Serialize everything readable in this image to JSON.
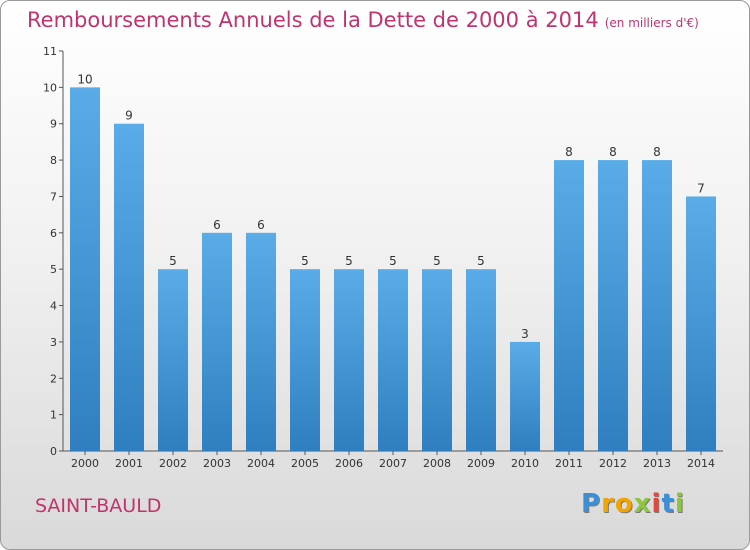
{
  "chart_data": {
    "type": "bar",
    "title": "Remboursements Annuels de la Dette de 2000 à 2014",
    "subtitle": "(en milliers d'€)",
    "categories": [
      "2000",
      "2001",
      "2002",
      "2003",
      "2004",
      "2005",
      "2006",
      "2007",
      "2008",
      "2009",
      "2010",
      "2011",
      "2012",
      "2013",
      "2014"
    ],
    "values": [
      10,
      9,
      5,
      6,
      6,
      5,
      5,
      5,
      5,
      5,
      3,
      8,
      8,
      8,
      7
    ],
    "data_labels": [
      "10",
      "9",
      "5",
      "6",
      "6",
      "5",
      "5",
      "5",
      "5",
      "5",
      "3",
      "8",
      "8",
      "8",
      "7"
    ],
    "ylim": [
      0,
      11
    ],
    "yticks": [
      "0",
      "1",
      "2",
      "3",
      "4",
      "5",
      "6",
      "7",
      "8",
      "9",
      "10",
      "11"
    ],
    "xlabel": "",
    "ylabel": "",
    "grid": false,
    "legend": "none",
    "colors": {
      "bar_top": "#5aace8",
      "bar_bottom": "#2f7fc0",
      "title": "#c2336e"
    }
  },
  "footer": {
    "city": "SAINT-BAULD"
  },
  "logo": {
    "letters": [
      {
        "ch": "P",
        "color": "#3b8fd8"
      },
      {
        "ch": "r",
        "color": "#f2a400"
      },
      {
        "ch": "o",
        "color": "#f2a400"
      },
      {
        "ch": "x",
        "color": "#8cc63f"
      },
      {
        "ch": "i",
        "color": "#e8463b"
      },
      {
        "ch": "t",
        "color": "#3b8fd8"
      },
      {
        "ch": "i",
        "color": "#8cc63f"
      }
    ]
  }
}
